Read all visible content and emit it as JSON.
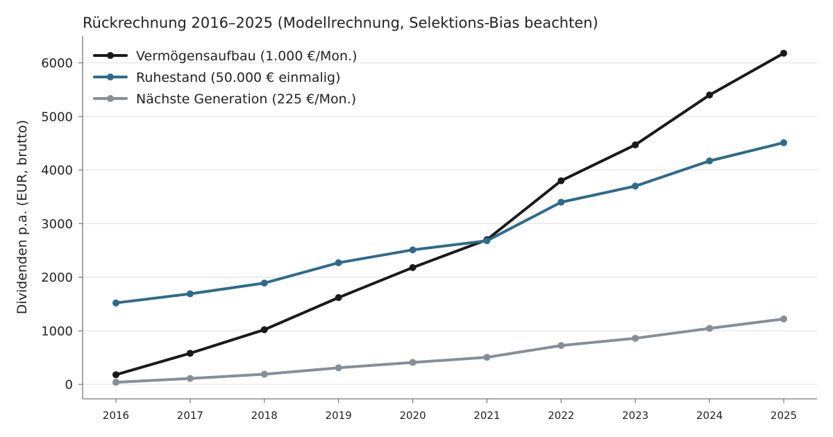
{
  "chart_data": {
    "type": "line",
    "title": "Rückrechnung 2016–2025 (Modellrechnung, Selektions-Bias beachten)",
    "xlabel": "",
    "ylabel": "Dividenden p.a. (EUR, brutto)",
    "categories": [
      "2016",
      "2017",
      "2018",
      "2019",
      "2020",
      "2021",
      "2022",
      "2023",
      "2024",
      "2025"
    ],
    "ylim": [
      -270,
      6500
    ],
    "yticks": [
      0,
      1000,
      2000,
      3000,
      4000,
      5000,
      6000
    ],
    "grid": "horizontal",
    "legend_position": "top-left",
    "series": [
      {
        "name": "Vermögensaufbau (1.000 €/Mon.)",
        "color": "#1a1a1a",
        "values": [
          180,
          580,
          1020,
          1620,
          2180,
          2700,
          3800,
          4470,
          5400,
          6180
        ]
      },
      {
        "name": "Ruhestand (50.000 € einmalig)",
        "color": "#2e6b8a",
        "values": [
          1520,
          1690,
          1890,
          2270,
          2510,
          2680,
          3400,
          3700,
          4170,
          4510
        ]
      },
      {
        "name": "Nächste Generation (225 €/Mon.)",
        "color": "#878e96",
        "values": [
          40,
          110,
          190,
          310,
          410,
          505,
          725,
          860,
          1045,
          1220
        ]
      }
    ]
  }
}
